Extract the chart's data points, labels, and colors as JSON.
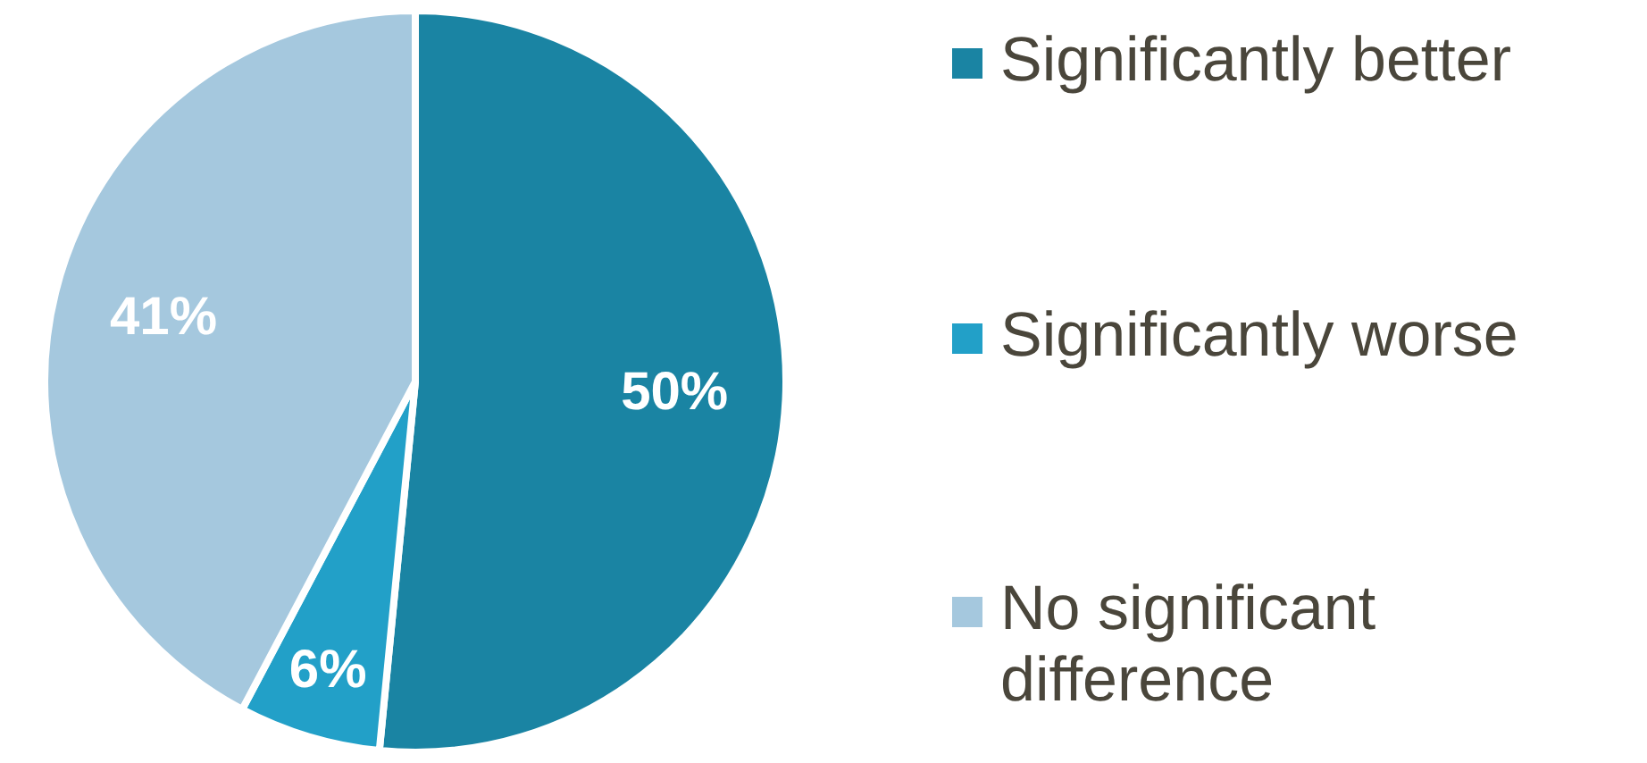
{
  "chart_data": {
    "type": "pie",
    "categories": [
      "Significantly better",
      "Significantly worse",
      "No significant difference"
    ],
    "values": [
      50,
      6,
      41
    ],
    "colors": [
      "#1a84a3",
      "#22a0c8",
      "#a5c8de"
    ],
    "value_labels": [
      "50%",
      "6%",
      "41%"
    ],
    "legend": "right"
  }
}
